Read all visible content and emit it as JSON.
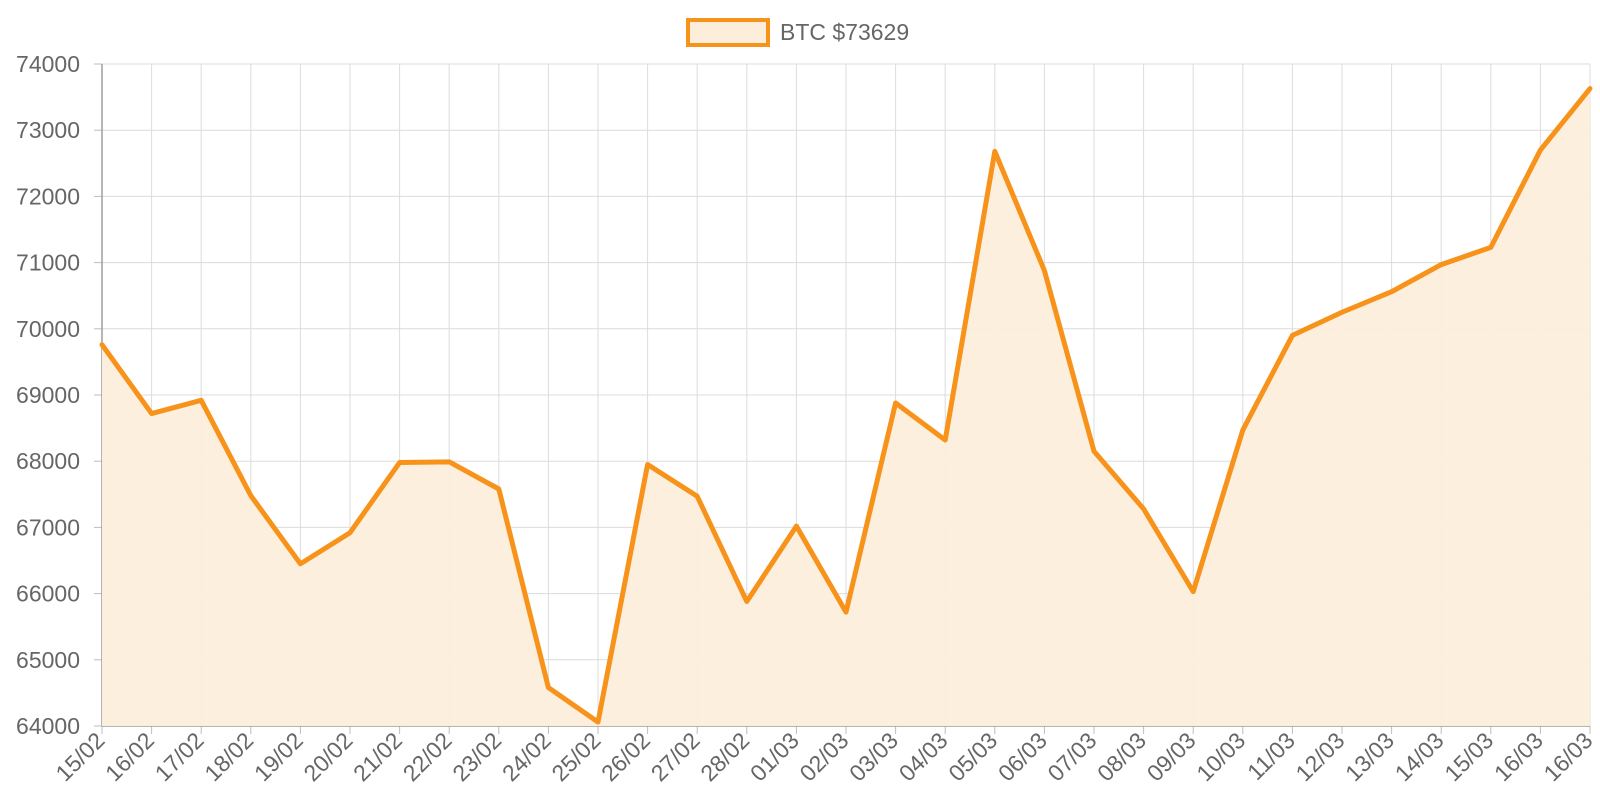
{
  "chart_data": {
    "type": "area",
    "legend": {
      "label": "BTC $73629",
      "position": "top-center"
    },
    "series": [
      {
        "name": "BTC $73629",
        "color": "#f7931a",
        "fill": "#fdeedb",
        "values": [
          69760,
          68720,
          68920,
          67480,
          66450,
          66920,
          67980,
          67990,
          67580,
          64580,
          64060,
          67950,
          67470,
          65880,
          67020,
          65720,
          68880,
          68320,
          72680,
          70880,
          68150,
          67280,
          66030,
          68470,
          69900,
          70250,
          70560,
          70970,
          71230,
          72700,
          73629
        ]
      }
    ],
    "categories": [
      "15/02",
      "16/02",
      "17/02",
      "18/02",
      "19/02",
      "20/02",
      "21/02",
      "22/02",
      "23/02",
      "24/02",
      "25/02",
      "26/02",
      "27/02",
      "28/02",
      "01/03",
      "02/03",
      "03/03",
      "04/03",
      "05/03",
      "06/03",
      "07/03",
      "08/03",
      "09/03",
      "10/03",
      "11/03",
      "12/03",
      "13/03",
      "14/03",
      "15/03",
      "16/03",
      "16/03"
    ],
    "yticks": [
      "74000",
      "73000",
      "72000",
      "71000",
      "70000",
      "69000",
      "68000",
      "67000",
      "66000",
      "65000",
      "64000"
    ],
    "ylim": [
      64000,
      74000
    ],
    "grid": true,
    "title": "",
    "xlabel": "",
    "ylabel": ""
  }
}
